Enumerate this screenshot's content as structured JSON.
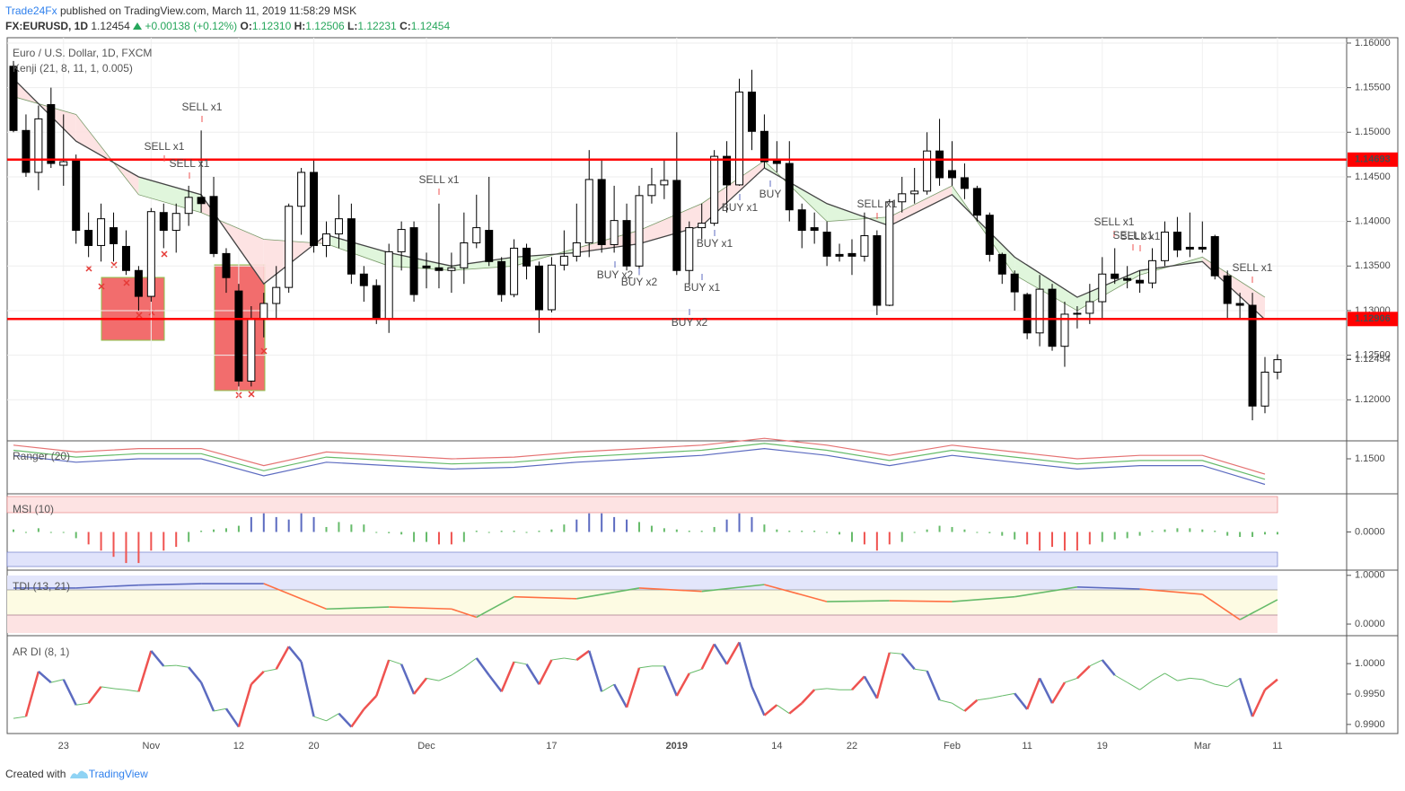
{
  "header": {
    "author": "Trade24Fx",
    "published": "published on TradingView.com, March 11, 2019 11:58:29 MSK",
    "symbol": "FX:EURUSD, 1D",
    "last": "1.12454",
    "change": "+0.00138 (+0.12%)",
    "o_label": "O:",
    "o": "1.12310",
    "h_label": "H:",
    "h": "1.12506",
    "l_label": "L:",
    "l": "1.12231",
    "c_label": "C:",
    "c": "1.12454"
  },
  "footer": {
    "text": "Created with",
    "brand": "TradingView"
  },
  "xticks": [
    "23",
    "Nov",
    "12",
    "20",
    "Dec",
    "17",
    "2019",
    "14",
    "22",
    "Feb",
    "11",
    "19",
    "Mar",
    "11"
  ],
  "chart_data": [
    {
      "type": "candlestick",
      "title": "Euro / U.S. Dollar, 1D, FXCM",
      "subtitle": "Kenji (21, 8, 11, 1, 0.005)",
      "open": [
        1.1574,
        1.1502,
        1.1455,
        1.1531,
        1.1463,
        1.1469,
        1.139,
        1.1373,
        1.1393,
        1.1372,
        1.1345,
        1.1316,
        1.141,
        1.139,
        1.1409,
        1.1427,
        1.1428,
        1.1364,
        1.1322,
        1.1221,
        1.1291,
        1.1308,
        1.1326,
        1.1417,
        1.1455,
        1.1373,
        1.1386,
        1.1403,
        1.1341,
        1.1328,
        1.129,
        1.1366,
        1.1393,
        1.135,
        1.1348,
        1.1345,
        1.1348,
        1.1376,
        1.139,
        1.1355,
        1.1318,
        1.137,
        1.135,
        1.1301,
        1.1351,
        1.1361,
        1.1376,
        1.1447,
        1.1374,
        1.1401,
        1.135,
        1.1429,
        1.1441,
        1.1446,
        1.1345,
        1.1393,
        1.1398,
        1.1473,
        1.1441,
        1.1545,
        1.1501,
        1.1468,
        1.1465,
        1.1413,
        1.1393,
        1.1388,
        1.1363,
        1.1364,
        1.1361,
        1.1384,
        1.1306,
        1.1422,
        1.1431,
        1.1434,
        1.1479,
        1.1457,
        1.1449,
        1.1437,
        1.1407,
        1.1363,
        1.1341,
        1.1318,
        1.1275,
        1.1324,
        1.126,
        1.1296,
        1.1297,
        1.131,
        1.1341,
        1.1336,
        1.1334,
        1.1331,
        1.1356,
        1.1388,
        1.1371,
        1.1371,
        1.1383,
        1.1339,
        1.1308,
        1.1306,
        1.1193,
        1.1231
      ],
      "high": [
        1.158,
        1.152,
        1.153,
        1.155,
        1.152,
        1.1475,
        1.141,
        1.142,
        1.141,
        1.139,
        1.135,
        1.1415,
        1.142,
        1.142,
        1.144,
        1.1502,
        1.145,
        1.137,
        1.133,
        1.1305,
        1.132,
        1.135,
        1.142,
        1.146,
        1.147,
        1.14,
        1.143,
        1.142,
        1.135,
        1.1335,
        1.1375,
        1.14,
        1.14,
        1.1365,
        1.142,
        1.1365,
        1.141,
        1.143,
        1.145,
        1.136,
        1.138,
        1.1375,
        1.1355,
        1.136,
        1.139,
        1.142,
        1.148,
        1.147,
        1.144,
        1.142,
        1.144,
        1.146,
        1.147,
        1.15,
        1.14,
        1.142,
        1.148,
        1.149,
        1.156,
        1.157,
        1.152,
        1.149,
        1.149,
        1.142,
        1.141,
        1.14,
        1.1375,
        1.138,
        1.141,
        1.139,
        1.1425,
        1.145,
        1.146,
        1.15,
        1.1515,
        1.149,
        1.1465,
        1.144,
        1.141,
        1.1365,
        1.1345,
        1.132,
        1.134,
        1.133,
        1.131,
        1.1305,
        1.133,
        1.136,
        1.137,
        1.135,
        1.1345,
        1.137,
        1.14,
        1.1405,
        1.141,
        1.14,
        1.1385,
        1.1345,
        1.132,
        1.132,
        1.1248,
        1.1251
      ],
      "low": [
        1.15,
        1.145,
        1.1435,
        1.146,
        1.144,
        1.1375,
        1.136,
        1.1355,
        1.1355,
        1.134,
        1.13,
        1.131,
        1.137,
        1.1365,
        1.1395,
        1.141,
        1.136,
        1.132,
        1.1215,
        1.1215,
        1.127,
        1.129,
        1.132,
        1.1385,
        1.1365,
        1.136,
        1.137,
        1.133,
        1.131,
        1.1285,
        1.1275,
        1.1345,
        1.131,
        1.1325,
        1.1325,
        1.132,
        1.133,
        1.137,
        1.135,
        1.131,
        1.1315,
        1.1335,
        1.1275,
        1.1298,
        1.1345,
        1.1355,
        1.136,
        1.1365,
        1.1365,
        1.1345,
        1.134,
        1.142,
        1.1425,
        1.134,
        1.133,
        1.138,
        1.1395,
        1.141,
        1.144,
        1.148,
        1.146,
        1.1455,
        1.14,
        1.137,
        1.1375,
        1.135,
        1.1355,
        1.134,
        1.1355,
        1.1295,
        1.1305,
        1.141,
        1.142,
        1.143,
        1.144,
        1.144,
        1.1425,
        1.14,
        1.1355,
        1.133,
        1.13,
        1.1268,
        1.126,
        1.1255,
        1.1237,
        1.128,
        1.1285,
        1.129,
        1.133,
        1.1325,
        1.132,
        1.1325,
        1.135,
        1.136,
        1.136,
        1.1365,
        1.1335,
        1.129,
        1.129,
        1.1177,
        1.1185,
        1.1223
      ],
      "close": [
        1.1502,
        1.1455,
        1.1515,
        1.1465,
        1.1467,
        1.139,
        1.1373,
        1.1403,
        1.1375,
        1.1345,
        1.1316,
        1.1411,
        1.139,
        1.1409,
        1.1427,
        1.142,
        1.1364,
        1.1337,
        1.1221,
        1.1291,
        1.1308,
        1.1326,
        1.1417,
        1.1455,
        1.1373,
        1.1386,
        1.1403,
        1.1341,
        1.1328,
        1.129,
        1.1366,
        1.1391,
        1.1318,
        1.1348,
        1.1345,
        1.1348,
        1.1376,
        1.1393,
        1.1355,
        1.1318,
        1.137,
        1.135,
        1.1301,
        1.1351,
        1.1361,
        1.1376,
        1.1447,
        1.1374,
        1.1401,
        1.135,
        1.1429,
        1.1441,
        1.1446,
        1.1345,
        1.1393,
        1.1398,
        1.1473,
        1.1441,
        1.1545,
        1.1501,
        1.1467,
        1.1465,
        1.1413,
        1.139,
        1.139,
        1.1361,
        1.1361,
        1.1361,
        1.1384,
        1.1306,
        1.1422,
        1.1431,
        1.1434,
        1.1479,
        1.1449,
        1.1449,
        1.1437,
        1.1407,
        1.1363,
        1.1341,
        1.1321,
        1.1275,
        1.1324,
        1.126,
        1.1296,
        1.1297,
        1.131,
        1.1341,
        1.1336,
        1.1334,
        1.1331,
        1.1356,
        1.1388,
        1.1368,
        1.1369,
        1.1369,
        1.1339,
        1.1308,
        1.1306,
        1.1193,
        1.1231,
        1.1245
      ],
      "ylim": [
        1.1155,
        1.1606
      ],
      "yticks": [
        {
          "value": 1.12,
          "label": "1.12000"
        },
        {
          "value": 1.125,
          "label": "1.12500"
        },
        {
          "value": 1.13,
          "label": "1.13000"
        },
        {
          "value": 1.135,
          "label": "1.13500"
        },
        {
          "value": 1.14,
          "label": "1.14000"
        },
        {
          "value": 1.145,
          "label": "1.14500"
        },
        {
          "value": 1.15,
          "label": "1.15000"
        },
        {
          "value": 1.155,
          "label": "1.15500"
        },
        {
          "value": 1.16,
          "label": "1.16000"
        }
      ],
      "levels": [
        1.14693,
        1.12906
      ],
      "level_color": "#ff0000",
      "last_price": 1.12454,
      "kenji": {
        "x": [
          0,
          5,
          10,
          15,
          20,
          25,
          30,
          35,
          40,
          45,
          50,
          55,
          60,
          65,
          70,
          75,
          80,
          85,
          90,
          95,
          100
        ],
        "line": [
          1.156,
          1.149,
          1.145,
          1.143,
          1.133,
          1.1385,
          1.1365,
          1.135,
          1.136,
          1.1365,
          1.1375,
          1.1395,
          1.146,
          1.142,
          1.1395,
          1.143,
          1.136,
          1.1315,
          1.1345,
          1.1355,
          1.129
        ],
        "edge": [
          1.154,
          1.152,
          1.143,
          1.141,
          1.138,
          1.1375,
          1.135,
          1.1345,
          1.135,
          1.137,
          1.139,
          1.142,
          1.1468,
          1.14,
          1.1405,
          1.144,
          1.134,
          1.13,
          1.134,
          1.136,
          1.1315
        ]
      },
      "annotations": [
        {
          "text": "SELL x1",
          "color": "#ef5350"
        },
        {
          "text": "SELL x1",
          "color": "#ef5350"
        },
        {
          "text": "SELL x1",
          "color": "#ef5350"
        },
        {
          "text": "SELL x1",
          "color": "#ef5350"
        },
        {
          "text": "BUY x2",
          "color": "#5c6bc0"
        },
        {
          "text": "BUY x2",
          "color": "#5c6bc0"
        },
        {
          "text": "BUY x2",
          "color": "#5c6bc0"
        },
        {
          "text": "BUY x1",
          "color": "#5c6bc0"
        },
        {
          "text": "BUY x1",
          "color": "#5c6bc0"
        },
        {
          "text": "BUY x1",
          "color": "#5c6bc0"
        },
        {
          "text": "BUY",
          "color": "#5c6bc0"
        },
        {
          "text": "SELL x1",
          "color": "#ef5350"
        },
        {
          "text": "SELL x1",
          "color": "#ef5350"
        },
        {
          "text": "SELL x1",
          "color": "#ef5350"
        },
        {
          "text": "SELL x1",
          "color": "#ef5350"
        },
        {
          "text": "SELL x1",
          "color": "#ef5350"
        }
      ]
    },
    {
      "type": "line",
      "title": "Ranger (20)",
      "x": [
        0,
        5,
        10,
        15,
        20,
        25,
        30,
        35,
        40,
        45,
        50,
        55,
        60,
        65,
        70,
        75,
        80,
        85,
        90,
        95,
        100
      ],
      "series": [
        {
          "color": "#e57373",
          "values": [
            1.154,
            1.152,
            1.153,
            1.153,
            1.148,
            1.152,
            1.151,
            1.15,
            1.1505,
            1.152,
            1.153,
            1.154,
            1.156,
            1.154,
            1.151,
            1.154,
            1.152,
            1.15,
            1.151,
            1.151,
            1.1455
          ]
        },
        {
          "color": "#66bb6a",
          "values": [
            1.1525,
            1.1505,
            1.1515,
            1.1515,
            1.1465,
            1.1505,
            1.1495,
            1.1485,
            1.149,
            1.1505,
            1.1515,
            1.1525,
            1.1545,
            1.1525,
            1.1495,
            1.1525,
            1.1505,
            1.1485,
            1.1495,
            1.1495,
            1.144
          ]
        },
        {
          "color": "#5c6bc0",
          "values": [
            1.151,
            1.149,
            1.15,
            1.15,
            1.145,
            1.149,
            1.148,
            1.147,
            1.1475,
            1.149,
            1.15,
            1.151,
            1.153,
            1.151,
            1.148,
            1.151,
            1.149,
            1.147,
            1.148,
            1.148,
            1.1425
          ]
        }
      ],
      "ylim": [
        1.14,
        1.155
      ],
      "yticks": [
        {
          "value": 1.15,
          "label": "1.1500"
        }
      ]
    },
    {
      "type": "bar",
      "title": "MSI (10)",
      "values": [
        0.0002,
        0,
        0.0003,
        0,
        0,
        -0.0005,
        -0.001,
        -0.0015,
        -0.002,
        -0.0025,
        -0.0025,
        -0.0015,
        -0.0015,
        -0.0012,
        -0.0008,
        0.0001,
        0.0002,
        0.0003,
        0.0005,
        0.0012,
        0.0015,
        0.0012,
        0.001,
        0.0015,
        0.0012,
        0.0004,
        0.0008,
        0.0006,
        0.0006,
        0,
        -0.0001,
        -0.0002,
        -0.0008,
        -0.0008,
        -0.001,
        -0.001,
        -0.0008,
        0.0001,
        0,
        0.0001,
        0.0001,
        0,
        0.0001,
        0.0002,
        0.0006,
        0.001,
        0.0015,
        0.0015,
        0.0012,
        0.001,
        0.0008,
        0.0005,
        0.0003,
        0.0002,
        0.0001,
        0.0001,
        0.0004,
        0.001,
        0.0015,
        0.0012,
        0.0006,
        0.0002,
        0.0001,
        0.0001,
        0.0001,
        0,
        -0.0002,
        -0.0008,
        -0.001,
        -0.0015,
        -0.001,
        -0.0008,
        0,
        0.0002,
        0.0005,
        0.0004,
        0.0002,
        0,
        -0.0001,
        -0.0003,
        -0.0006,
        -0.001,
        -0.0015,
        -0.0012,
        -0.0015,
        -0.0015,
        -0.001,
        -0.0008,
        -0.0006,
        -0.0005,
        -0.0003,
        0.0001,
        0.0002,
        0.0003,
        0.0003,
        0.0002,
        0.0001,
        -0.0003,
        -0.0004,
        -0.0004,
        -0.0002,
        -0.0002
      ],
      "ylim": [
        -0.003,
        0.003
      ],
      "yticks": [
        {
          "value": 0,
          "label": "0.0000"
        }
      ]
    },
    {
      "type": "line",
      "title": "TDI (13, 21)",
      "x": [
        0,
        5,
        10,
        15,
        20,
        25,
        30,
        35,
        37,
        40,
        45,
        50,
        55,
        60,
        65,
        70,
        75,
        80,
        85,
        90,
        95,
        98,
        101
      ],
      "values": [
        0.74,
        0.74,
        0.8,
        0.83,
        0.83,
        0.31,
        0.35,
        0.31,
        0.14,
        0.56,
        0.52,
        0.74,
        0.67,
        0.81,
        0.46,
        0.48,
        0.46,
        0.56,
        0.76,
        0.72,
        0.61,
        0.09,
        0.5
      ],
      "ylim": [
        -0.22,
        1.07
      ],
      "yticks": [
        {
          "value": 1,
          "label": "1.0000"
        },
        {
          "value": 0,
          "label": "0.0000"
        }
      ]
    },
    {
      "type": "line",
      "title": "AR DI (8, 1)",
      "values": [
        0.991,
        0.9913,
        0.9987,
        0.9969,
        0.9974,
        0.9932,
        0.9935,
        0.9962,
        0.9959,
        0.9957,
        0.9954,
        1.0021,
        0.9996,
        0.9997,
        0.9994,
        0.9969,
        0.9922,
        0.9926,
        0.9896,
        0.9966,
        0.9987,
        0.9991,
        1.0028,
        1.0003,
        0.9913,
        0.9906,
        0.9918,
        0.9896,
        0.9925,
        0.9947,
        1.0006,
        0.9999,
        0.995,
        0.9976,
        0.9972,
        0.9981,
        0.9994,
        1.0009,
        0.9981,
        0.9954,
        1.0003,
        0.9999,
        0.9966,
        1.0006,
        1.0009,
        1.0006,
        1.0021,
        0.9954,
        0.9966,
        0.9928,
        0.9993,
        0.9996,
        0.9996,
        0.9947,
        0.9984,
        0.9991,
        1.0032,
        0.9999,
        1.0035,
        0.9962,
        0.9915,
        0.9932,
        0.9918,
        0.9935,
        0.9957,
        0.9959,
        0.9957,
        0.9957,
        0.9979,
        0.9943,
        1.0018,
        1.0016,
        0.9991,
        0.9988,
        0.994,
        0.9935,
        0.9922,
        0.994,
        0.9943,
        0.9947,
        0.9951,
        0.9925,
        0.9976,
        0.9935,
        0.9969,
        0.9976,
        0.9996,
        1.0006,
        0.9981,
        0.9969,
        0.9957,
        0.9972,
        0.9984,
        0.9972,
        0.9976,
        0.9974,
        0.9966,
        0.9962,
        0.9976,
        0.9913,
        0.9957,
        0.9974
      ],
      "ylim": [
        0.9888,
        1.0043
      ],
      "yticks": [
        {
          "value": 1,
          "label": "1.0000"
        },
        {
          "value": 0.995,
          "label": "0.9950"
        },
        {
          "value": 0.99,
          "label": "0.9900"
        }
      ]
    }
  ]
}
